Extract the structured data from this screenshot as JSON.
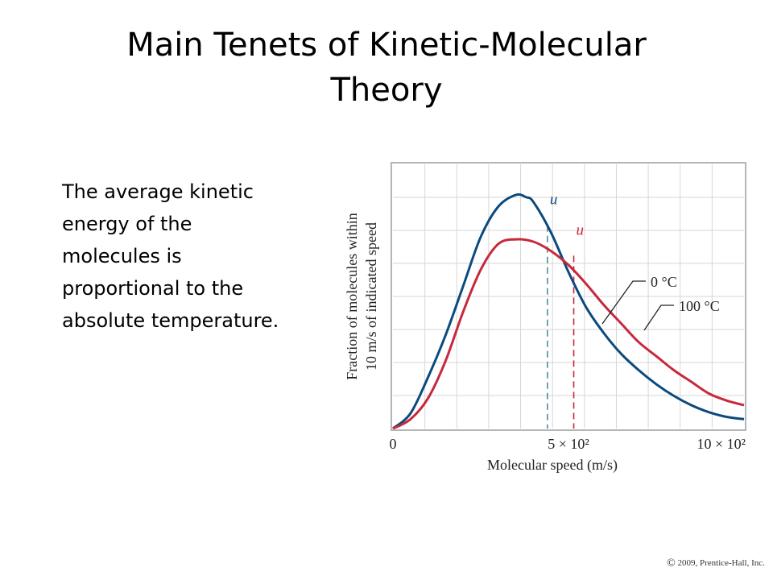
{
  "slide": {
    "title_lines": [
      "Main Tenets of Kinetic-Molecular",
      "Theory"
    ],
    "body_lines": [
      "The average kinetic",
      "energy of the",
      "molecules is",
      "proportional to the",
      "absolute temperature."
    ],
    "footer": "2009, Prentice-Hall, Inc."
  },
  "chart_data": {
    "type": "line",
    "xlabel": "Molecular speed (m/s)",
    "ylabel_lines": [
      "Fraction of molecules within",
      "10 m/s of indicated speed"
    ],
    "x_tick_labels": [
      "0",
      "5 × 10²",
      "10 × 10²"
    ],
    "x_ticks": [
      0,
      500,
      1000
    ],
    "xlim": [
      0,
      1000
    ],
    "grid": true,
    "series": [
      {
        "name": "0 °C",
        "color": "#0b4a7d",
        "x": [
          0,
          50,
          100,
          150,
          200,
          250,
          300,
          350,
          380,
          400,
          450,
          500,
          550,
          600,
          650,
          700,
          750,
          800,
          850,
          900,
          950,
          1000
        ],
        "y": [
          0.0,
          0.065,
          0.22,
          0.4,
          0.61,
          0.82,
          0.95,
          1.0,
          0.99,
          0.97,
          0.84,
          0.67,
          0.52,
          0.41,
          0.32,
          0.25,
          0.19,
          0.14,
          0.1,
          0.07,
          0.05,
          0.04
        ],
        "marker_label": "u",
        "marker_x": 440,
        "marker_y": 0.87
      },
      {
        "name": "100 °C",
        "color": "#c8283c",
        "x": [
          0,
          50,
          100,
          150,
          200,
          250,
          300,
          350,
          400,
          450,
          500,
          550,
          600,
          650,
          700,
          750,
          800,
          850,
          900,
          950,
          1000
        ],
        "y": [
          0.0,
          0.04,
          0.13,
          0.29,
          0.5,
          0.68,
          0.79,
          0.81,
          0.8,
          0.76,
          0.7,
          0.62,
          0.53,
          0.45,
          0.37,
          0.31,
          0.25,
          0.2,
          0.15,
          0.12,
          0.1
        ],
        "marker_label": "u",
        "marker_x": 515,
        "marker_y": 0.74
      }
    ]
  }
}
